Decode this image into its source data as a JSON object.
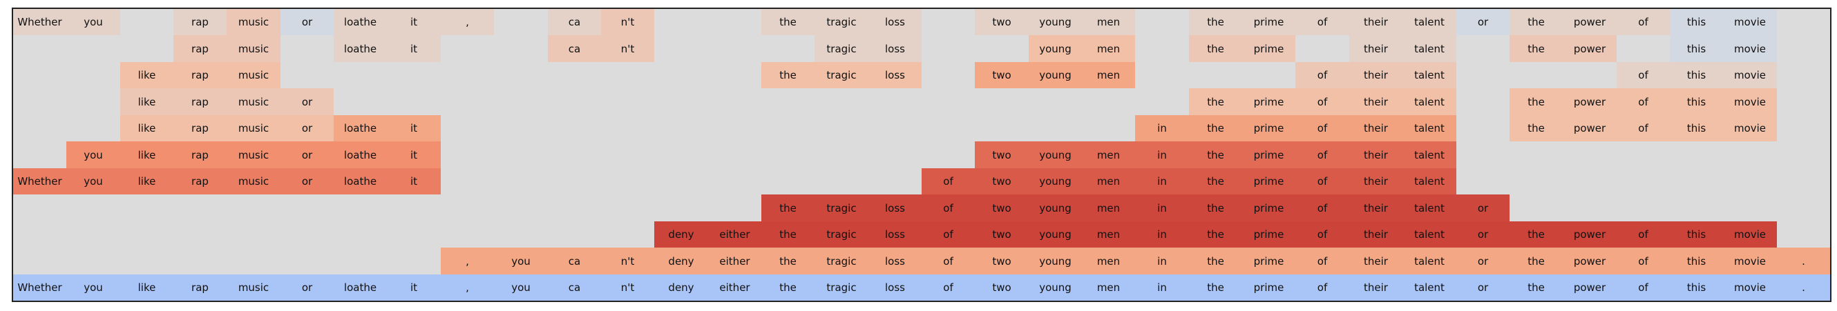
{
  "tokens": [
    "Whether",
    "you",
    "like",
    "rap",
    "music",
    "or",
    "loathe",
    "it",
    ",",
    "you",
    "ca",
    "n't",
    "deny",
    "either",
    "the",
    "tragic",
    "loss",
    "of",
    "two",
    "young",
    "men",
    "in",
    "the",
    "prime",
    "of",
    "their",
    "talent",
    "or",
    "the",
    "power",
    "of",
    "this",
    "movie",
    "."
  ],
  "palette": {
    "background": "#dcdcdc",
    "sentence_row": "#a9c4f7",
    "levels": {
      "b": "#d3d9e3",
      "1": "#e4d2c9",
      "2": "#ecc7b6",
      "3": "#f2c0a6",
      "4": "#f4a785",
      "5": "#f3a27f",
      "6": "#f28f6e",
      "7": "#ea7d62",
      "8": "#e26b55",
      "9": "#da5a4a",
      "10": "#d44e41",
      "11": "#cd473c",
      "12": "#cc4339",
      "S": "#a9c4f7"
    }
  },
  "rows": [
    [
      "1",
      "1",
      "0",
      "1",
      "2",
      "b",
      "1",
      "1",
      "1",
      "0",
      "1",
      "2",
      "0",
      "0",
      "1",
      "1",
      "1",
      "0",
      "1",
      "1",
      "1",
      "0",
      "1",
      "1",
      "1",
      "1",
      "1",
      "b",
      "1",
      "1",
      "1",
      "b",
      "b",
      "0"
    ],
    [
      "0",
      "0",
      "0",
      "2",
      "2",
      "0",
      "1",
      "1",
      "0",
      "0",
      "2",
      "2",
      "0",
      "0",
      "0",
      "1",
      "1",
      "0",
      "0",
      "3",
      "3",
      "0",
      "2",
      "2",
      "0",
      "1",
      "1",
      "0",
      "2",
      "2",
      "0",
      "b",
      "b",
      "0"
    ],
    [
      "0",
      "0",
      "3",
      "3",
      "3",
      "0",
      "0",
      "0",
      "0",
      "0",
      "0",
      "0",
      "0",
      "0",
      "3",
      "3",
      "3",
      "0",
      "4",
      "4",
      "4",
      "0",
      "0",
      "0",
      "2",
      "2",
      "2",
      "0",
      "0",
      "0",
      "1",
      "1",
      "1",
      "0"
    ],
    [
      "0",
      "0",
      "2",
      "2",
      "2",
      "2",
      "0",
      "0",
      "0",
      "0",
      "0",
      "0",
      "0",
      "0",
      "0",
      "0",
      "0",
      "0",
      "0",
      "0",
      "0",
      "0",
      "3",
      "3",
      "3",
      "3",
      "3",
      "0",
      "3",
      "3",
      "3",
      "3",
      "3",
      "0"
    ],
    [
      "0",
      "0",
      "3",
      "3",
      "3",
      "3",
      "4",
      "4",
      "0",
      "0",
      "0",
      "0",
      "0",
      "0",
      "0",
      "0",
      "0",
      "0",
      "0",
      "0",
      "0",
      "5",
      "5",
      "5",
      "5",
      "5",
      "5",
      "0",
      "3",
      "3",
      "3",
      "3",
      "3",
      "0"
    ],
    [
      "0",
      "6",
      "6",
      "6",
      "6",
      "6",
      "6",
      "6",
      "0",
      "0",
      "0",
      "0",
      "0",
      "0",
      "0",
      "0",
      "0",
      "0",
      "8",
      "8",
      "8",
      "8",
      "8",
      "8",
      "8",
      "8",
      "8",
      "0",
      "0",
      "0",
      "0",
      "0",
      "0",
      "0"
    ],
    [
      "7",
      "7",
      "7",
      "7",
      "7",
      "7",
      "7",
      "7",
      "0",
      "0",
      "0",
      "0",
      "0",
      "0",
      "0",
      "0",
      "0",
      "9",
      "9",
      "9",
      "9",
      "9",
      "9",
      "9",
      "9",
      "9",
      "9",
      "0",
      "0",
      "0",
      "0",
      "0",
      "0",
      "0"
    ],
    [
      "0",
      "0",
      "0",
      "0",
      "0",
      "0",
      "0",
      "0",
      "0",
      "0",
      "0",
      "0",
      "0",
      "0",
      "11",
      "11",
      "11",
      "11",
      "11",
      "11",
      "11",
      "11",
      "11",
      "11",
      "11",
      "11",
      "11",
      "11",
      "0",
      "0",
      "0",
      "0",
      "0",
      "0"
    ],
    [
      "0",
      "0",
      "0",
      "0",
      "0",
      "0",
      "0",
      "0",
      "0",
      "0",
      "0",
      "0",
      "12",
      "12",
      "12",
      "12",
      "12",
      "12",
      "12",
      "12",
      "12",
      "12",
      "12",
      "12",
      "12",
      "12",
      "12",
      "12",
      "12",
      "12",
      "12",
      "12",
      "12",
      "0"
    ],
    [
      "0",
      "0",
      "0",
      "0",
      "0",
      "0",
      "0",
      "0",
      "4",
      "4",
      "4",
      "4",
      "4",
      "4",
      "4",
      "4",
      "4",
      "4",
      "4",
      "4",
      "4",
      "4",
      "4",
      "4",
      "4",
      "4",
      "4",
      "4",
      "4",
      "4",
      "4",
      "4",
      "4",
      "4"
    ],
    [
      "S",
      "S",
      "S",
      "S",
      "S",
      "S",
      "S",
      "S",
      "S",
      "S",
      "S",
      "S",
      "S",
      "S",
      "S",
      "S",
      "S",
      "S",
      "S",
      "S",
      "S",
      "S",
      "S",
      "S",
      "S",
      "S",
      "S",
      "S",
      "S",
      "S",
      "S",
      "S",
      "S",
      "S"
    ]
  ]
}
